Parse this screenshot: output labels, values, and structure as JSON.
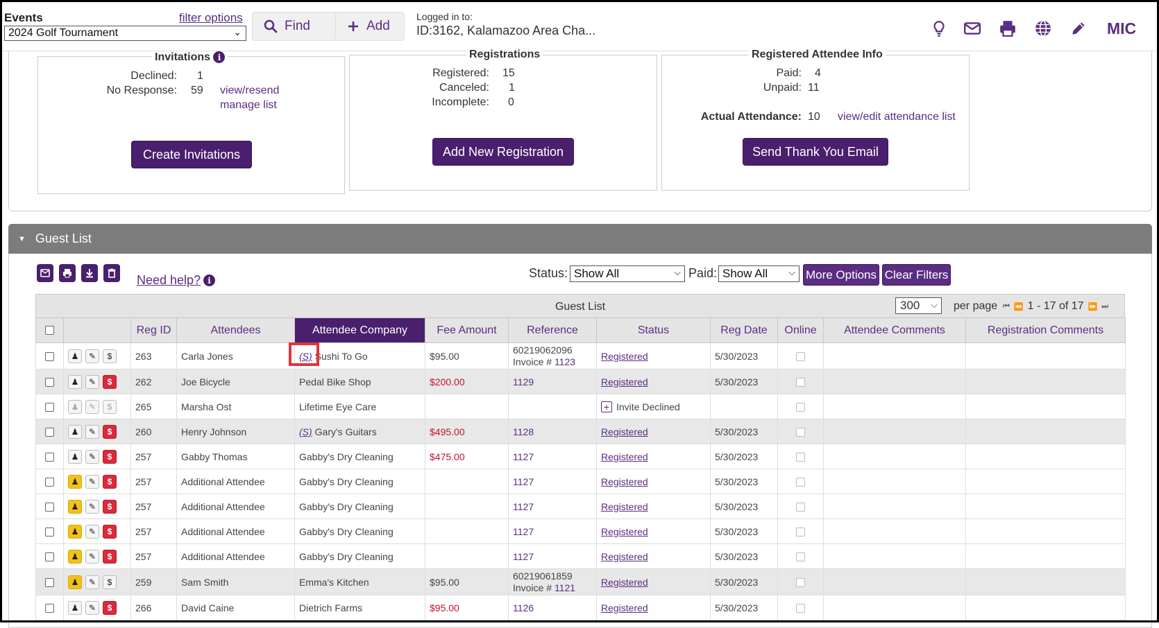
{
  "topbar": {
    "events_label": "Events",
    "filter_options": "filter options",
    "event_selected": "2024 Golf Tournament",
    "find_label": "Find",
    "add_label": "Add",
    "logged_in_label": "Logged in to:",
    "logged_in_value": "ID:3162, Kalamazoo Area Cha...",
    "user_initials": "MIC"
  },
  "invitations": {
    "title": "Invitations",
    "declined_label": "Declined:",
    "declined_value": "1",
    "noresponse_label": "No Response:",
    "noresponse_value": "59",
    "view_resend": "view/resend",
    "manage_list": "manage list",
    "button": "Create Invitations"
  },
  "registrations": {
    "title": "Registrations",
    "registered_label": "Registered:",
    "registered_value": "15",
    "canceled_label": "Canceled:",
    "canceled_value": "1",
    "incomplete_label": "Incomplete:",
    "incomplete_value": "0",
    "button": "Add New Registration"
  },
  "attendee_info": {
    "title": "Registered Attendee Info",
    "paid_label": "Paid:",
    "paid_value": "4",
    "unpaid_label": "Unpaid:",
    "unpaid_value": "11",
    "actual_label": "Actual Attendance:",
    "actual_value": "10",
    "view_edit": "view/edit attendance list",
    "button": "Send Thank You Email"
  },
  "guest_list": {
    "header": "Guest List",
    "need_help": "Need help?",
    "status_label": "Status:",
    "status_value": "Show All",
    "paid_label": "Paid:",
    "paid_value": "Show All",
    "more_options": "More Options",
    "clear_filters": "Clear Filters",
    "caption": "Guest List",
    "per_page_value": "300",
    "per_page_label": "per page",
    "range": "1 - 17 of 17",
    "columns": [
      "Reg ID",
      "Attendees",
      "Attendee Company",
      "Fee Amount",
      "Reference",
      "Status",
      "Reg Date",
      "Online",
      "Attendee Comments",
      "Registration Comments"
    ],
    "rows": [
      {
        "id": "263",
        "name": "Carla Jones",
        "s": "(S)",
        "company": "Sushi To Go",
        "fee": "$95.00",
        "ref1": "60219062096",
        "ref2": "Invoice # ",
        "ref2link": "1123",
        "status": "Registered",
        "date": "5/30/2023"
      },
      {
        "id": "262",
        "name": "Joe Bicycle",
        "s": "",
        "company": "Pedal Bike Shop",
        "fee": "$200.00",
        "ref1": "",
        "ref2": "",
        "ref2link": "1129",
        "status": "Registered",
        "date": "5/30/2023"
      },
      {
        "id": "265",
        "name": "Marsha Ost",
        "s": "",
        "company": "Lifetime Eye Care",
        "fee": "",
        "ref1": "",
        "ref2": "",
        "ref2link": "",
        "status": "Invite Declined",
        "date": ""
      },
      {
        "id": "260",
        "name": "Henry Johnson",
        "s": "(S)",
        "company": "Gary's Guitars",
        "fee": "$495.00",
        "ref1": "",
        "ref2": "",
        "ref2link": "1128",
        "status": "Registered",
        "date": "5/30/2023"
      },
      {
        "id": "257",
        "name": "Gabby Thomas",
        "s": "",
        "company": "Gabby's Dry Cleaning",
        "fee": "$475.00",
        "ref1": "",
        "ref2": "",
        "ref2link": "1127",
        "status": "Registered",
        "date": "5/30/2023"
      },
      {
        "id": "257",
        "name": "Additional Attendee",
        "s": "",
        "company": "Gabby's Dry Cleaning",
        "fee": "",
        "ref1": "",
        "ref2": "",
        "ref2link": "1127",
        "status": "Registered",
        "date": "5/30/2023"
      },
      {
        "id": "257",
        "name": "Additional Attendee",
        "s": "",
        "company": "Gabby's Dry Cleaning",
        "fee": "",
        "ref1": "",
        "ref2": "",
        "ref2link": "1127",
        "status": "Registered",
        "date": "5/30/2023"
      },
      {
        "id": "257",
        "name": "Additional Attendee",
        "s": "",
        "company": "Gabby's Dry Cleaning",
        "fee": "",
        "ref1": "",
        "ref2": "",
        "ref2link": "1127",
        "status": "Registered",
        "date": "5/30/2023"
      },
      {
        "id": "257",
        "name": "Additional Attendee",
        "s": "",
        "company": "Gabby's Dry Cleaning",
        "fee": "",
        "ref1": "",
        "ref2": "",
        "ref2link": "1127",
        "status": "Registered",
        "date": "5/30/2023"
      },
      {
        "id": "259",
        "name": "Sam Smith",
        "s": "",
        "company": "Emma's Kitchen",
        "fee": "$95.00",
        "ref1": "60219061859",
        "ref2": "Invoice # ",
        "ref2link": "1121",
        "status": "Registered",
        "date": "5/30/2023"
      },
      {
        "id": "266",
        "name": "David Caine",
        "s": "",
        "company": "Dietrich Farms",
        "fee": "$95.00",
        "ref1": "",
        "ref2": "",
        "ref2link": "1126",
        "status": "Registered",
        "date": "5/30/2023"
      }
    ]
  }
}
